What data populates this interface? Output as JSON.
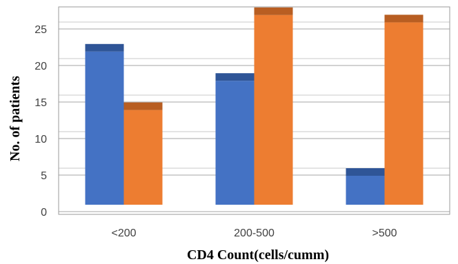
{
  "chart_data": {
    "type": "bar",
    "style": "3d-clustered",
    "title": "",
    "xlabel": "CD4 Count(cells/cumm)",
    "ylabel": "No. of patients",
    "categories": [
      "<200",
      "200-500",
      ">500"
    ],
    "series": [
      {
        "color": "#4472C4",
        "top_color": "#2F5597",
        "values": [
          22,
          18,
          5
        ]
      },
      {
        "color": "#ED7D31",
        "top_color": "#B85E22",
        "values": [
          14,
          27,
          26
        ]
      }
    ],
    "ylim": [
      0,
      25
    ],
    "yticks": [
      0,
      5,
      10,
      15,
      20,
      25
    ],
    "grid": true,
    "legend": "none"
  }
}
